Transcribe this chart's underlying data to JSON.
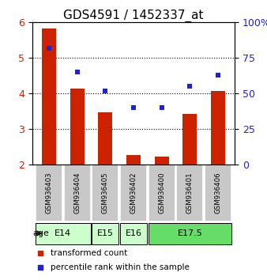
{
  "title": "GDS4591 / 1452337_at",
  "samples": [
    "GSM936403",
    "GSM936404",
    "GSM936405",
    "GSM936402",
    "GSM936400",
    "GSM936401",
    "GSM936406"
  ],
  "transformed_counts": [
    5.82,
    4.15,
    3.48,
    2.28,
    2.22,
    3.42,
    4.08
  ],
  "percentile_ranks": [
    82,
    65,
    52,
    40,
    40,
    55,
    63
  ],
  "ylim_left": [
    2,
    6
  ],
  "ylim_right": [
    0,
    100
  ],
  "yticks_left": [
    2,
    3,
    4,
    5,
    6
  ],
  "yticks_right": [
    0,
    25,
    50,
    75,
    100
  ],
  "bar_color": "#cc2200",
  "dot_color": "#2222cc",
  "bar_bottom": 2,
  "age_groups": [
    {
      "label": "E14",
      "spans": [
        0,
        1
      ],
      "color": "#ccffcc"
    },
    {
      "label": "E15",
      "spans": [
        2
      ],
      "color": "#ccffcc"
    },
    {
      "label": "E16",
      "spans": [
        3
      ],
      "color": "#ccffcc"
    },
    {
      "label": "E17.5",
      "spans": [
        4,
        5,
        6
      ],
      "color": "#66dd66"
    }
  ],
  "grid_color": "#000000",
  "background_color": "#ffffff",
  "sample_box_color": "#c8c8c8",
  "legend_label_bar": "transformed count",
  "legend_label_dot": "percentile rank within the sample",
  "xlabel_age": "age",
  "title_fontsize": 11,
  "tick_fontsize": 9,
  "label_fontsize": 8
}
